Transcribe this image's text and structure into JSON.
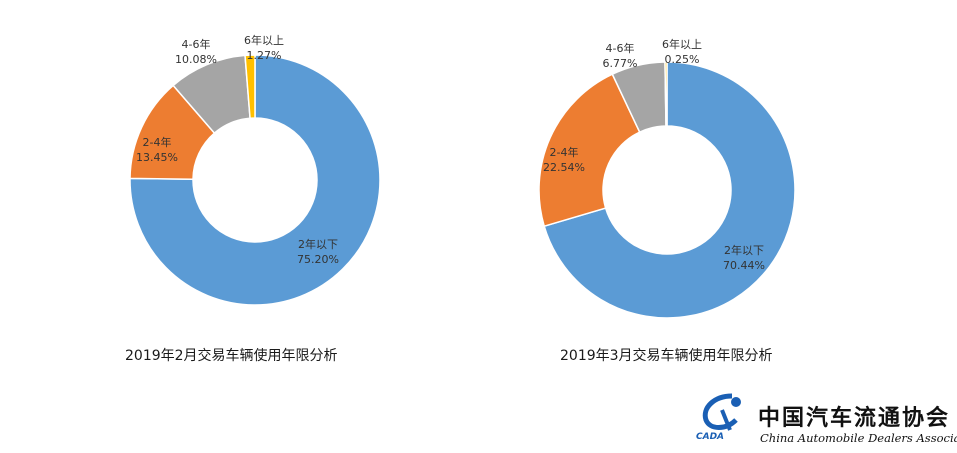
{
  "chart_data": [
    {
      "type": "pie",
      "title": "2019年2月交易车辆使用年限分析",
      "slices": [
        {
          "label": "2年以下",
          "value": 75.2,
          "display": "75.20%",
          "color": "#5b9bd5"
        },
        {
          "label": "2-4年",
          "value": 13.45,
          "display": "13.45%",
          "color": "#ed7d31"
        },
        {
          "label": "4-6年",
          "value": 10.08,
          "display": "10.08%",
          "color": "#a5a5a5"
        },
        {
          "label": "6年以上",
          "value": 1.27,
          "display": "1.27%",
          "color": "#ffc000"
        }
      ]
    },
    {
      "type": "pie",
      "title": "2019年3月交易车辆使用年限分析",
      "slices": [
        {
          "label": "2年以下",
          "value": 70.44,
          "display": "70.44%",
          "color": "#5b9bd5"
        },
        {
          "label": "2-4年",
          "value": 22.54,
          "display": "22.54%",
          "color": "#ed7d31"
        },
        {
          "label": "4-6年",
          "value": 6.77,
          "display": "6.77%",
          "color": "#a5a5a5"
        },
        {
          "label": "6年以上",
          "value": 0.25,
          "display": "0.25%",
          "color": "#ffc000"
        }
      ]
    }
  ],
  "logo": {
    "name_cn": "中国汽车流通协会",
    "name_en": "China Automobile Dealers Association",
    "abbr": "CADA"
  }
}
